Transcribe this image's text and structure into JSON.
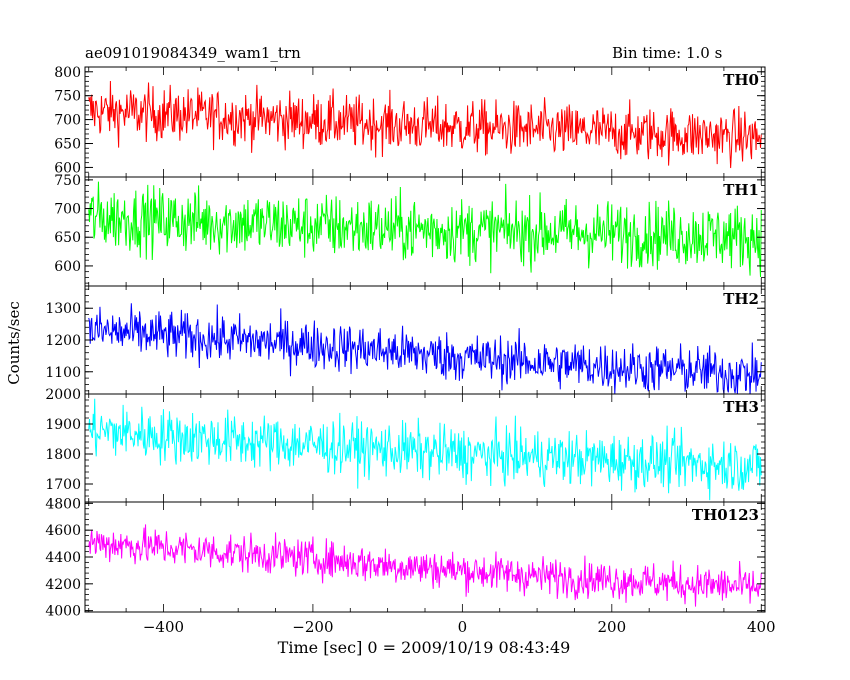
{
  "header": {
    "left": "ae091019084349_wam1_trn",
    "right": "Bin time: 1.0 s"
  },
  "chart_data": {
    "type": "line",
    "xlabel": "Time [sec] 0 = 2009/10/19 08:43:49",
    "ylabel": "Counts/sec",
    "xlim": [
      -505,
      405
    ],
    "xticks": [
      -400,
      -200,
      0,
      200,
      400
    ],
    "bin_time_s": 1.0,
    "panels": [
      {
        "name": "TH0",
        "color": "#ff0000",
        "ylim": [
          580,
          810
        ],
        "yticks": [
          600,
          650,
          700,
          750,
          800
        ],
        "trend_x": [
          -500,
          -400,
          -300,
          -200,
          -100,
          0,
          100,
          200,
          300,
          400
        ],
        "trend_y": [
          718,
          712,
          705,
          698,
          690,
          684,
          678,
          673,
          668,
          662
        ],
        "noise": 28
      },
      {
        "name": "TH1",
        "color": "#00ff00",
        "ylim": [
          565,
          755
        ],
        "yticks": [
          600,
          650,
          700,
          750
        ],
        "trend_x": [
          -500,
          -400,
          -300,
          -200,
          -100,
          0,
          100,
          200,
          300,
          400
        ],
        "trend_y": [
          685,
          680,
          675,
          670,
          665,
          662,
          660,
          657,
          654,
          650
        ],
        "noise": 28
      },
      {
        "name": "TH2",
        "color": "#0000ff",
        "ylim": [
          1030,
          1370
        ],
        "yticks": [
          1100,
          1200,
          1300
        ],
        "trend_x": [
          -500,
          -400,
          -300,
          -200,
          -100,
          0,
          100,
          200,
          300,
          400
        ],
        "trend_y": [
          1230,
          1215,
          1200,
          1185,
          1165,
          1145,
          1130,
          1115,
          1105,
          1090
        ],
        "noise": 38
      },
      {
        "name": "TH3",
        "color": "#00ffff",
        "ylim": [
          1640,
          2000
        ],
        "yticks": [
          1700,
          1800,
          1900,
          2000
        ],
        "trend_x": [
          -500,
          -400,
          -300,
          -200,
          -100,
          0,
          100,
          200,
          300,
          400
        ],
        "trend_y": [
          1880,
          1860,
          1845,
          1830,
          1815,
          1800,
          1790,
          1780,
          1770,
          1760
        ],
        "noise": 45
      },
      {
        "name": "TH0123",
        "color": "#ff00ff",
        "ylim": [
          3990,
          4810
        ],
        "yticks": [
          4000,
          4200,
          4400,
          4600,
          4800
        ],
        "trend_x": [
          -500,
          -400,
          -300,
          -200,
          -100,
          0,
          100,
          200,
          300,
          400
        ],
        "trend_y": [
          4510,
          4470,
          4430,
          4390,
          4340,
          4300,
          4260,
          4230,
          4200,
          4170
        ],
        "noise": 70,
        "step_at": -225,
        "step_size": -60
      }
    ]
  }
}
